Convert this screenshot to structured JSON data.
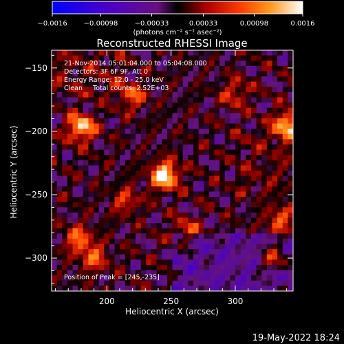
{
  "chart_data": {
    "type": "heatmap",
    "title": "Reconstructed RHESSI Image",
    "xlabel": "Heliocentric X (arcsec)",
    "ylabel": "Heliocentric Y (arcsec)",
    "xlim": [
      157,
      345
    ],
    "ylim": [
      -326,
      -136
    ],
    "x_ticks": [
      200,
      250,
      300
    ],
    "y_ticks": [
      -150,
      -200,
      -250,
      -300
    ],
    "colorbar": {
      "unit_label": "(photons cm⁻² s⁻¹ asec⁻²)",
      "range": [
        -0.0016,
        0.0016
      ],
      "tick_values": [
        -0.0016,
        -0.00098,
        -0.00033,
        0.00033,
        0.00098,
        0.0016
      ],
      "tick_labels": [
        "−0.0016",
        "−0.00098",
        "−0.00033",
        "0.00033",
        "0.00098",
        "0.0016"
      ]
    },
    "annotations": [
      "21-Nov-2014 05:01:04.000 to 05:04:08.000",
      "Detectors: 3F 6F 9F, Att 0",
      "Energy Range: 12.0 - 25.0 keV",
      "Clean     Total counts: 2.52E+03"
    ],
    "peak": {
      "x": 245,
      "y": -235,
      "label": "Position of Peak = [245,-235]"
    },
    "sources": [
      {
        "x": 245,
        "y": -235,
        "amp": 1.0
      },
      {
        "x": 180,
        "y": -197,
        "amp": 0.85
      },
      {
        "x": 340,
        "y": -195,
        "amp": 0.8
      },
      {
        "x": 178,
        "y": -285,
        "amp": 0.55
      },
      {
        "x": 190,
        "y": -300,
        "amp": 0.5
      },
      {
        "x": 330,
        "y": -300,
        "amp": 0.55
      },
      {
        "x": 335,
        "y": -270,
        "amp": 0.5
      },
      {
        "x": 220,
        "y": -172,
        "amp": 0.5
      },
      {
        "x": 300,
        "y": -170,
        "amp": 0.4
      },
      {
        "x": 262,
        "y": -280,
        "amp": 0.45
      },
      {
        "x": 215,
        "y": -255,
        "amp": 0.4
      }
    ]
  },
  "footer": {
    "timestamp": "19-May-2022 18:24"
  }
}
